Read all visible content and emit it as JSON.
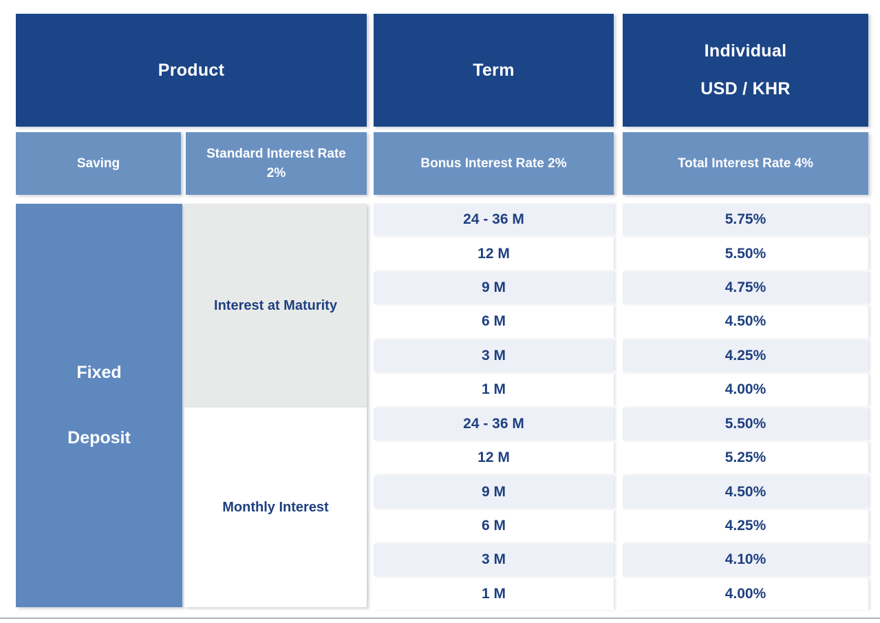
{
  "table": {
    "header": {
      "product": "Product",
      "term": "Term",
      "individual_line1": "Individual",
      "individual_line2": "USD / KHR"
    },
    "subheader": {
      "saving": "Saving",
      "standard": "Standard Interest Rate 2%",
      "bonus": "Bonus Interest Rate 2%",
      "total": "Total Interest Rate 4%"
    },
    "product": {
      "line1": "Fixed",
      "line2": "Deposit"
    },
    "sections": [
      {
        "payout": "Interest at Maturity",
        "rows": [
          {
            "term": "24 - 36 M",
            "rate": "5.75%"
          },
          {
            "term": "12 M",
            "rate": "5.50%"
          },
          {
            "term": "9 M",
            "rate": "4.75%"
          },
          {
            "term": "6 M",
            "rate": "4.50%"
          },
          {
            "term": "3 M",
            "rate": "4.25%"
          },
          {
            "term": "1 M",
            "rate": "4.00%"
          }
        ]
      },
      {
        "payout": "Monthly Interest",
        "rows": [
          {
            "term": "24 - 36 M",
            "rate": "5.50%"
          },
          {
            "term": "12 M",
            "rate": "5.25%"
          },
          {
            "term": "9 M",
            "rate": "4.50%"
          },
          {
            "term": "6 M",
            "rate": "4.25%"
          },
          {
            "term": "3 M",
            "rate": "4.10%"
          },
          {
            "term": "1 M",
            "rate": "4.00%"
          }
        ]
      }
    ],
    "colors": {
      "header_blue": "#1c4587",
      "subheader_blue": "#6b91c1",
      "product_column_blue": "#5f88bf",
      "maturity_gray": "#e8eae9",
      "stripe_light": "#eef0f7",
      "body_text_navy": "#1e4080",
      "bottom_rule_gray": "#aeb3ba"
    }
  }
}
